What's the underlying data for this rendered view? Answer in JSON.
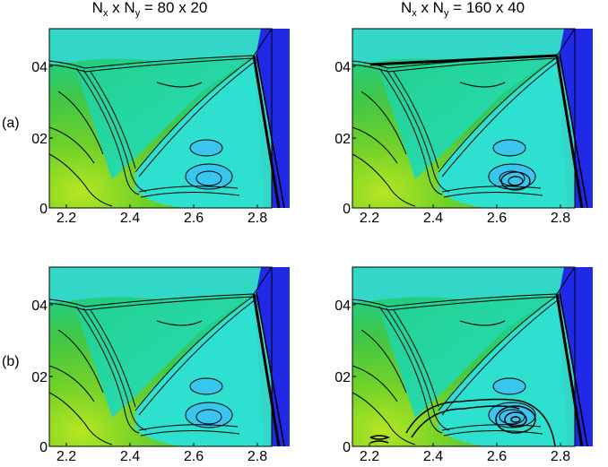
{
  "column_titles": [
    {
      "prefix": "N",
      "sub1": "x",
      "mid": " x N",
      "sub2": "y",
      "suffix": " = 80 x 20"
    },
    {
      "prefix": "N",
      "sub1": "x",
      "mid": " x N",
      "sub2": "y",
      "suffix": " = 160 x 40"
    }
  ],
  "row_labels": [
    "(a)",
    "(b)"
  ],
  "x_ticks": [
    "2.2",
    "2.4",
    "2.6",
    "2.8"
  ],
  "y_ticks": [
    "04",
    "02",
    "0"
  ],
  "colors": {
    "upper_region": "#33d7c8",
    "mid_region": "#18cfa4",
    "left_green": "#46c83c",
    "lower_left_yellow": "#b6e622",
    "interior": "#2ee0cf",
    "bubble": "#38c6ee",
    "right_blue": "#1f29e6",
    "contour": "#000000"
  }
}
